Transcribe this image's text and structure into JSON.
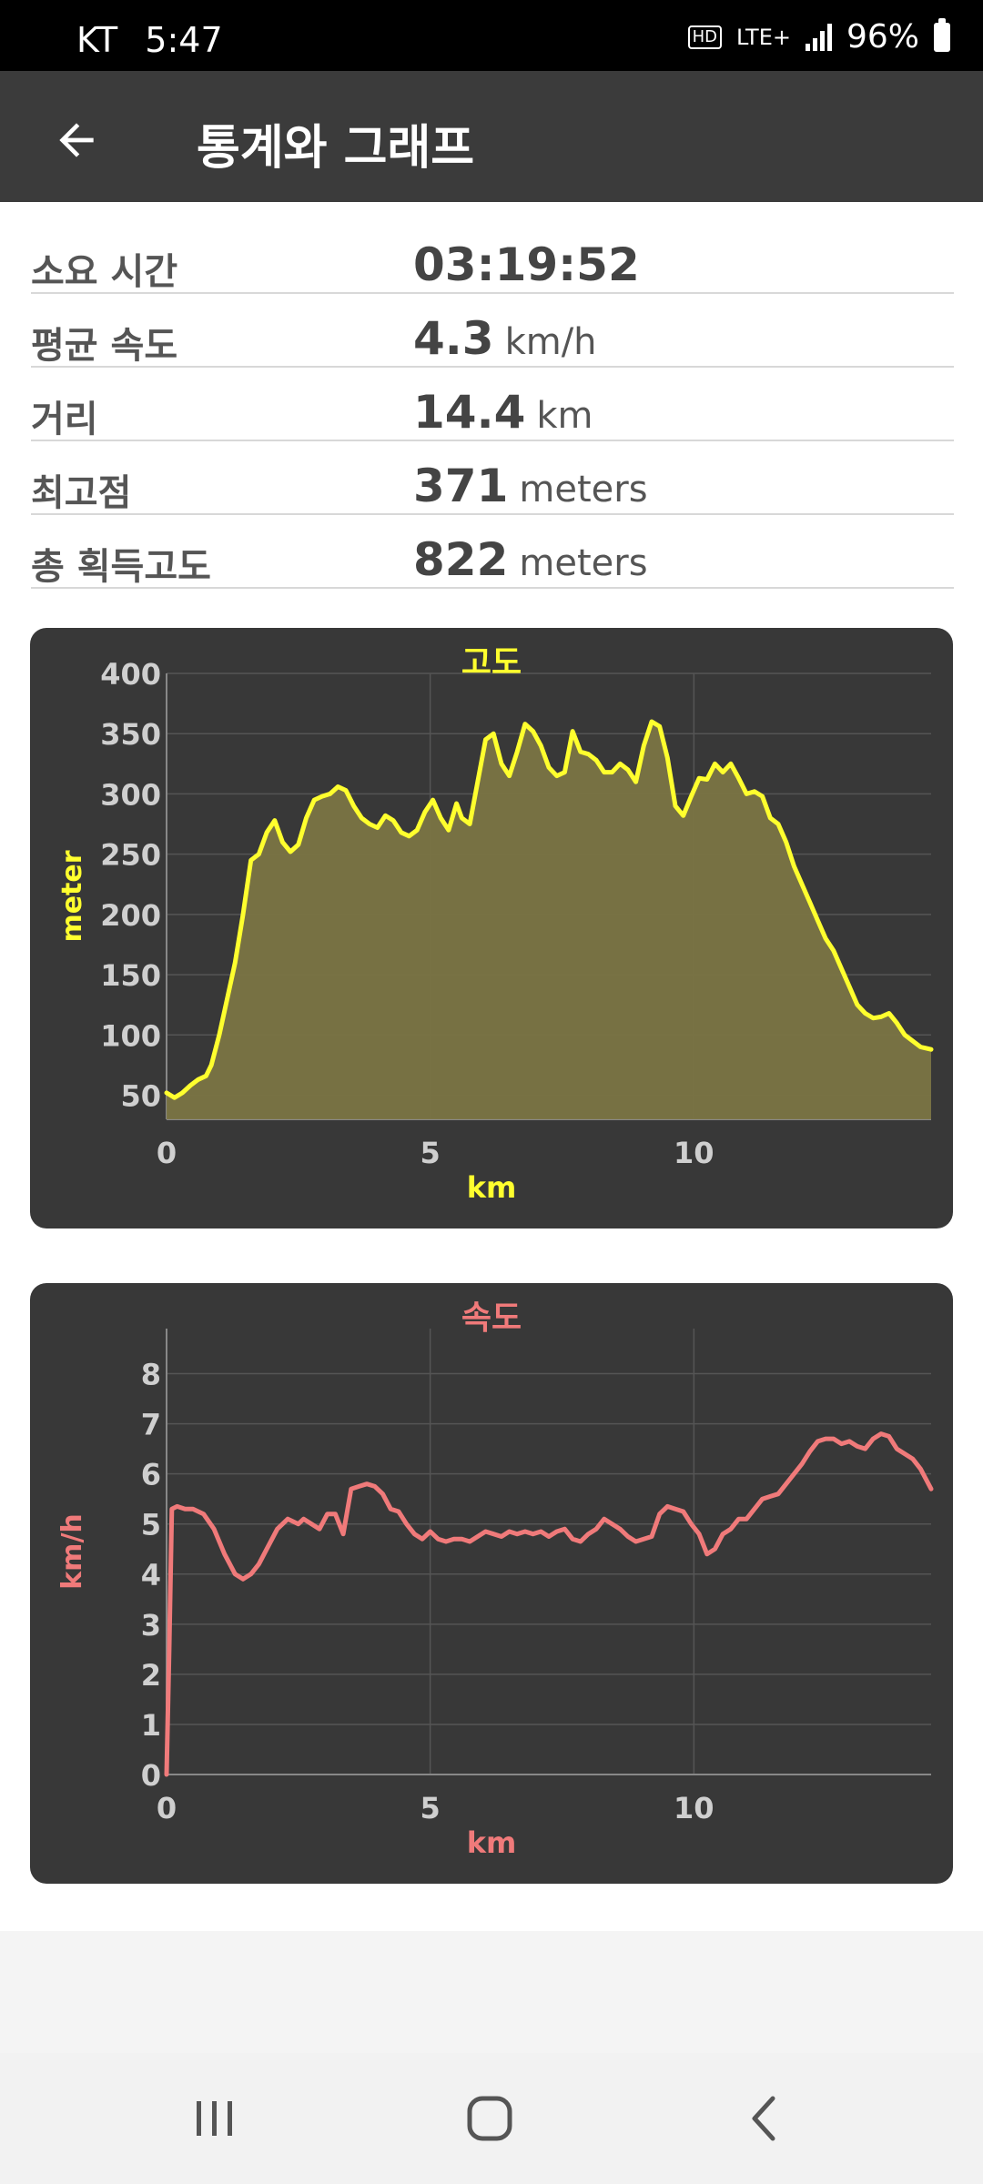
{
  "status_bar": {
    "carrier": "KT",
    "time": "5:47",
    "hd_badge": "HD",
    "network": "LTE+",
    "battery": "96%"
  },
  "app_bar": {
    "back_icon": "arrow-left-icon",
    "title": "통계와 그래프"
  },
  "stats": [
    {
      "label": "소요 시간",
      "value": "03:19:52",
      "unit": ""
    },
    {
      "label": "평균 속도",
      "value": "4.3",
      "unit": "km/h"
    },
    {
      "label": "거리",
      "value": "14.4",
      "unit": "km"
    },
    {
      "label": "최고점",
      "value": "371",
      "unit": "meters"
    },
    {
      "label": "총 획득고도",
      "value": "822",
      "unit": "meters"
    }
  ],
  "chart_data": [
    {
      "type": "area",
      "title": "고도",
      "xlabel": "km",
      "ylabel": "meter",
      "xlim": [
        0,
        14.5
      ],
      "ylim": [
        30,
        400
      ],
      "xticks": [
        0,
        5,
        10
      ],
      "yticks": [
        50,
        100,
        150,
        200,
        250,
        300,
        350,
        400
      ],
      "grid": true,
      "color": "#ffff2e",
      "fill": "#7a7443",
      "x": [
        0,
        0.15,
        0.3,
        0.45,
        0.6,
        0.75,
        0.85,
        1.0,
        1.15,
        1.3,
        1.45,
        1.6,
        1.75,
        1.9,
        2.05,
        2.2,
        2.35,
        2.5,
        2.65,
        2.8,
        2.95,
        3.1,
        3.25,
        3.4,
        3.55,
        3.7,
        3.85,
        4.0,
        4.15,
        4.3,
        4.45,
        4.6,
        4.75,
        4.9,
        5.05,
        5.2,
        5.35,
        5.5,
        5.6,
        5.75,
        5.9,
        6.05,
        6.2,
        6.35,
        6.5,
        6.65,
        6.8,
        6.95,
        7.1,
        7.25,
        7.4,
        7.55,
        7.7,
        7.85,
        8.0,
        8.15,
        8.3,
        8.45,
        8.6,
        8.75,
        8.9,
        9.05,
        9.2,
        9.35,
        9.5,
        9.65,
        9.8,
        9.95,
        10.1,
        10.25,
        10.4,
        10.55,
        10.7,
        10.85,
        11.0,
        11.15,
        11.3,
        11.45,
        11.6,
        11.75,
        11.9,
        12.05,
        12.2,
        12.35,
        12.5,
        12.65,
        12.8,
        12.95,
        13.1,
        13.25,
        13.4,
        13.55,
        13.7,
        13.85,
        14.0,
        14.15,
        14.3,
        14.5
      ],
      "y": [
        52,
        48,
        52,
        58,
        63,
        66,
        75,
        100,
        130,
        160,
        200,
        245,
        250,
        268,
        278,
        260,
        252,
        258,
        280,
        295,
        298,
        300,
        306,
        303,
        290,
        280,
        275,
        272,
        282,
        278,
        268,
        265,
        270,
        285,
        295,
        280,
        270,
        292,
        280,
        275,
        310,
        345,
        350,
        325,
        315,
        335,
        358,
        352,
        340,
        322,
        315,
        318,
        352,
        335,
        333,
        328,
        318,
        318,
        325,
        320,
        310,
        340,
        360,
        356,
        330,
        290,
        282,
        298,
        313,
        312,
        325,
        318,
        325,
        313,
        300,
        302,
        298,
        280,
        275,
        260,
        240,
        225,
        210,
        195,
        180,
        170,
        155,
        140,
        125,
        118,
        114,
        115,
        118,
        110,
        100,
        95,
        90,
        88
      ]
    },
    {
      "type": "line",
      "title": "속도",
      "xlabel": "km",
      "ylabel": "km/h",
      "xlim": [
        0,
        14.5
      ],
      "ylim": [
        0,
        8.9
      ],
      "xticks": [
        0,
        5,
        10
      ],
      "yticks": [
        0,
        1,
        2,
        3,
        4,
        5,
        6,
        7,
        8
      ],
      "grid": true,
      "color": "#f07a7a",
      "x": [
        0,
        0.05,
        0.1,
        0.2,
        0.35,
        0.5,
        0.7,
        0.9,
        1.1,
        1.3,
        1.45,
        1.6,
        1.75,
        1.9,
        2.1,
        2.3,
        2.5,
        2.6,
        2.75,
        2.9,
        3.05,
        3.2,
        3.35,
        3.5,
        3.65,
        3.8,
        3.95,
        4.1,
        4.25,
        4.4,
        4.55,
        4.7,
        4.85,
        5.0,
        5.15,
        5.3,
        5.45,
        5.6,
        5.75,
        5.9,
        6.05,
        6.2,
        6.35,
        6.5,
        6.65,
        6.8,
        6.95,
        7.1,
        7.25,
        7.4,
        7.55,
        7.7,
        7.85,
        8.0,
        8.15,
        8.3,
        8.45,
        8.6,
        8.75,
        8.9,
        9.05,
        9.2,
        9.35,
        9.5,
        9.65,
        9.8,
        9.95,
        10.1,
        10.25,
        10.4,
        10.55,
        10.7,
        10.85,
        11.0,
        11.15,
        11.3,
        11.45,
        11.6,
        11.75,
        11.9,
        12.05,
        12.2,
        12.35,
        12.5,
        12.65,
        12.8,
        12.95,
        13.1,
        13.25,
        13.4,
        13.55,
        13.7,
        13.85,
        14.0,
        14.15,
        14.3,
        14.5
      ],
      "y": [
        0,
        2.5,
        5.3,
        5.35,
        5.3,
        5.3,
        5.2,
        4.9,
        4.4,
        4.0,
        3.9,
        4.0,
        4.2,
        4.5,
        4.9,
        5.1,
        5.0,
        5.1,
        5.0,
        4.9,
        5.2,
        5.2,
        4.8,
        5.7,
        5.75,
        5.8,
        5.75,
        5.6,
        5.3,
        5.25,
        5.0,
        4.8,
        4.7,
        4.85,
        4.7,
        4.65,
        4.7,
        4.7,
        4.65,
        4.75,
        4.85,
        4.8,
        4.75,
        4.85,
        4.8,
        4.85,
        4.8,
        4.85,
        4.75,
        4.85,
        4.9,
        4.7,
        4.65,
        4.8,
        4.9,
        5.1,
        5.0,
        4.9,
        4.75,
        4.65,
        4.7,
        4.75,
        5.2,
        5.35,
        5.3,
        5.25,
        5.0,
        4.8,
        4.4,
        4.5,
        4.8,
        4.9,
        5.1,
        5.1,
        5.3,
        5.5,
        5.55,
        5.6,
        5.8,
        6.0,
        6.2,
        6.45,
        6.65,
        6.7,
        6.7,
        6.6,
        6.65,
        6.55,
        6.5,
        6.7,
        6.8,
        6.75,
        6.5,
        6.4,
        6.3,
        6.1,
        5.7
      ]
    }
  ],
  "nav_bar": {
    "recents_icon": "recents-icon",
    "home_icon": "home-icon",
    "back_icon": "back-chevron-icon"
  }
}
